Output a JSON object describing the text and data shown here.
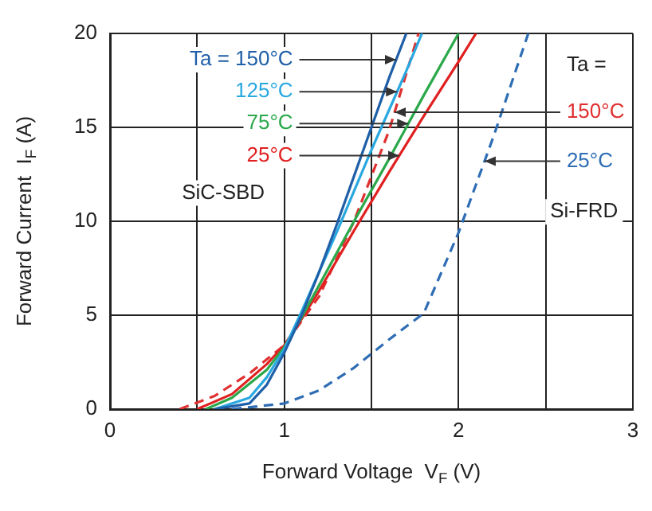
{
  "chart_data": {
    "type": "line",
    "xlabel": "Forward Voltage  V$_{F}$ (V)",
    "ylabel": "Forward Current  I$_{F}$ (A)",
    "xlim": [
      0,
      3
    ],
    "xticks": [
      0,
      {
        "value": 0.5,
        "label": null
      },
      1,
      {
        "value": 1.5,
        "label": null
      },
      2,
      {
        "value": 2.5,
        "label": null
      },
      3
    ],
    "ylim": [
      0,
      20
    ],
    "yticks": [
      0,
      5,
      10,
      15,
      20
    ],
    "grid": true,
    "legend": false,
    "marker": "none",
    "annotations": [
      "SiC-SBD",
      "Ta =",
      "Si-FRD"
    ],
    "series": [
      {
        "name": "Ta = 150°C",
        "color": "#1f5fa8",
        "line_style": "solid",
        "x": [
          0.6,
          0.8,
          0.9,
          1,
          1.1,
          1.2,
          1.3,
          1.4,
          1.5,
          1.6,
          1.7
        ],
        "values": [
          0,
          0.3,
          1.3,
          3,
          5,
          7.3,
          9.8,
          12.4,
          15,
          17.6,
          20
        ]
      },
      {
        "name": "125°C",
        "color": "#29a8e0",
        "line_style": "solid",
        "x": [
          0.6,
          0.8,
          0.9,
          1,
          1.1,
          1.2,
          1.3,
          1.4,
          1.5,
          1.6,
          1.7,
          1.79
        ],
        "values": [
          0,
          0.6,
          1.7,
          3.2,
          5.2,
          7.3,
          9.4,
          11.6,
          13.8,
          15.9,
          18,
          20
        ]
      },
      {
        "name": "75°C",
        "color": "#2aa84a",
        "line_style": "solid",
        "x": [
          0.55,
          0.7,
          0.9,
          1,
          1.1,
          1.2,
          1.4,
          1.6,
          1.8,
          2.0
        ],
        "values": [
          0,
          0.6,
          2.1,
          3.3,
          4.9,
          6.6,
          10,
          13.3,
          16.7,
          20
        ]
      },
      {
        "name": "25°C",
        "color": "#e02020",
        "line_style": "solid",
        "x": [
          0.5,
          0.7,
          0.9,
          1,
          1.1,
          1.2,
          1.4,
          1.6,
          1.8,
          2.0,
          2.1
        ],
        "values": [
          0,
          0.8,
          2.4,
          3.4,
          4.8,
          6.3,
          9.5,
          12.6,
          15.6,
          18.5,
          20
        ]
      },
      {
        "name": "150°C",
        "color": "#e03030",
        "line_style": "dashed",
        "x": [
          0.4,
          0.6,
          0.8,
          1,
          1.2,
          1.4,
          1.6,
          1.77
        ],
        "values": [
          0,
          0.7,
          1.9,
          3.4,
          6,
          10,
          14.8,
          20
        ]
      },
      {
        "name": "25°C",
        "color": "#2e6db4",
        "line_style": "dashed",
        "x": [
          0.7,
          1,
          1.2,
          1.4,
          1.6,
          1.8,
          2.0,
          2.2,
          2.4
        ],
        "values": [
          0,
          0.3,
          1,
          2.2,
          3.7,
          5.1,
          9.4,
          14.5,
          20
        ]
      }
    ]
  }
}
